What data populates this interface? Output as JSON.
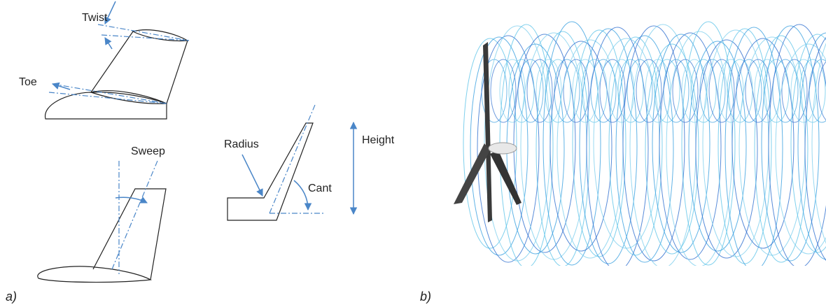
{
  "labels": {
    "twist": "Twist",
    "toe": "Toe",
    "sweep": "Sweep",
    "radius": "Radius",
    "height": "Height",
    "cant": "Cant"
  },
  "captions": {
    "a": "a)",
    "b": "b)"
  }
}
